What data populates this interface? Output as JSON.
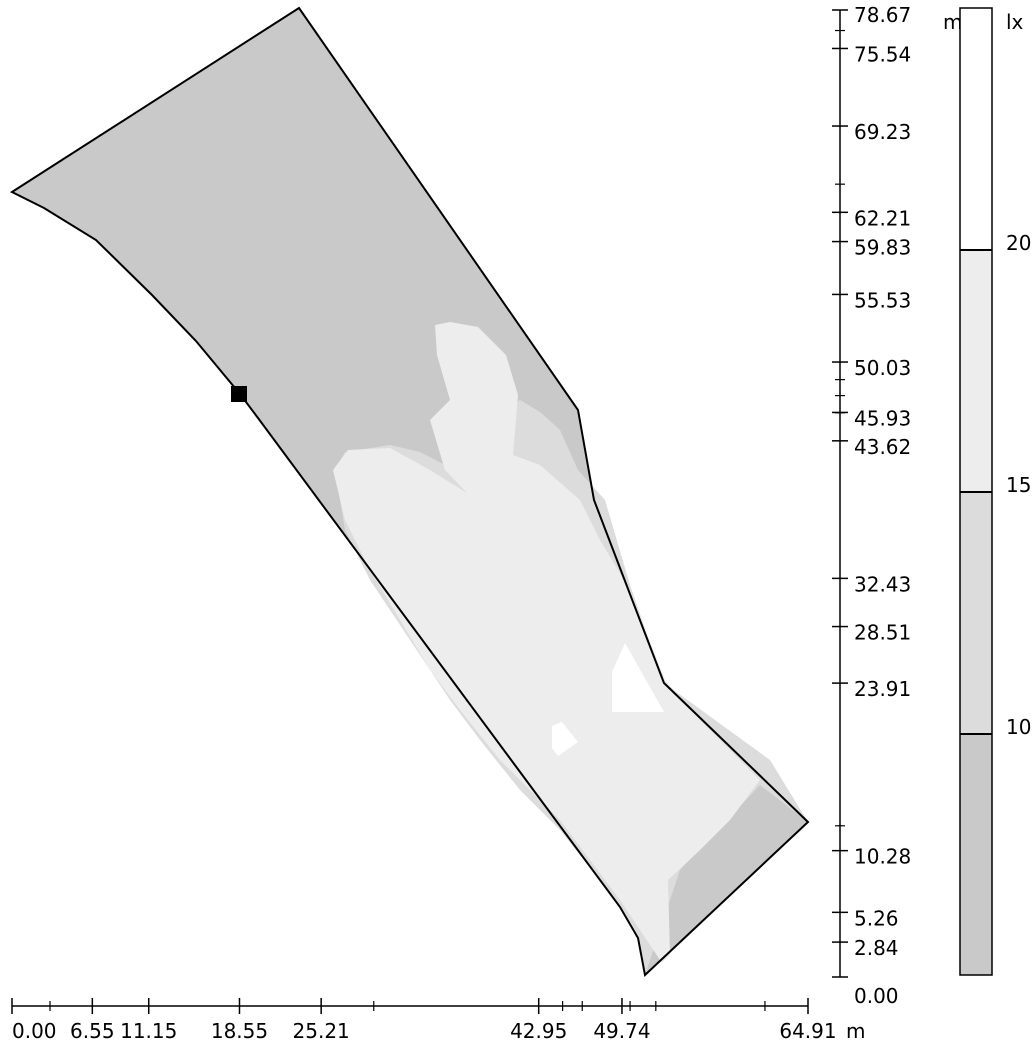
{
  "y_axis": {
    "ticks": [
      {
        "label": "78.67",
        "value": 78.67
      },
      {
        "label": "75.54",
        "value": 75.54
      },
      {
        "label": "69.23",
        "value": 69.23
      },
      {
        "label": "62.21",
        "value": 62.21
      },
      {
        "label": "59.83",
        "value": 59.83
      },
      {
        "label": "55.53",
        "value": 55.53
      },
      {
        "label": "50.03",
        "value": 50.03
      },
      {
        "label": "45.93",
        "value": 45.93
      },
      {
        "label": "43.62",
        "value": 43.62
      },
      {
        "label": "32.43",
        "value": 32.43
      },
      {
        "label": "28.51",
        "value": 28.51
      },
      {
        "label": "23.91",
        "value": 23.91
      },
      {
        "label": "10.28",
        "value": 10.28
      },
      {
        "label": "5.26",
        "value": 5.26
      },
      {
        "label": "2.84",
        "value": 2.84
      },
      {
        "label": "0.00",
        "value": 0.0
      }
    ],
    "unit": "m"
  },
  "x_axis": {
    "ticks": [
      {
        "label": "0.00",
        "value": 0.0
      },
      {
        "label": "6.55",
        "value": 6.55
      },
      {
        "label": "11.15",
        "value": 11.15
      },
      {
        "label": "18.55",
        "value": 18.55
      },
      {
        "label": "25.21",
        "value": 25.21
      },
      {
        "label": "42.95",
        "value": 42.95
      },
      {
        "label": "49.74",
        "value": 49.74
      },
      {
        "label": "64.91",
        "value": 64.91
      }
    ],
    "unit": "m"
  },
  "legend": {
    "unit": "lx",
    "levels": [
      {
        "label": "20",
        "value": 20
      },
      {
        "label": "15",
        "value": 15
      },
      {
        "label": "10",
        "value": 10
      }
    ],
    "bands": [
      {
        "range": "above 20",
        "color": "#ffffff"
      },
      {
        "range": "15-20",
        "color": "#ededed"
      },
      {
        "range": "10-15",
        "color": "#dcdcdc"
      },
      {
        "range": "below 10",
        "color": "#c9c9c9"
      }
    ]
  },
  "colors": {
    "outline": "#000000",
    "zone_low": "#c9c9c9",
    "zone_mid": "#dcdcdc",
    "zone_high": "#ededed",
    "zone_top": "#ffffff"
  }
}
